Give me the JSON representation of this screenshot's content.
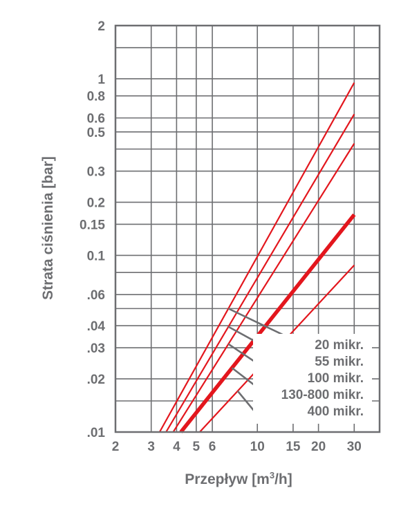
{
  "chart_data": {
    "type": "line",
    "xscale": "log",
    "yscale": "log",
    "xlim": [
      2,
      40
    ],
    "ylim": [
      0.01,
      2
    ],
    "xlabel_parts": [
      "Przepływ [m",
      "3",
      "/h]"
    ],
    "ylabel": "Strata ciśnienia [bar]",
    "x_ticks": [
      {
        "v": 2,
        "label": "2"
      },
      {
        "v": 3,
        "label": "3"
      },
      {
        "v": 4,
        "label": "4"
      },
      {
        "v": 5,
        "label": "5"
      },
      {
        "v": 6,
        "label": "6"
      },
      {
        "v": 10,
        "label": "10"
      },
      {
        "v": 15,
        "label": "15"
      },
      {
        "v": 20,
        "label": "20"
      },
      {
        "v": 30,
        "label": "30"
      }
    ],
    "x_grid": [
      2,
      3,
      4,
      5,
      6,
      10,
      15,
      20,
      30,
      40
    ],
    "y_ticks": [
      {
        "v": 0.01,
        "label": ".01"
      },
      {
        "v": 0.02,
        "label": ".02"
      },
      {
        "v": 0.03,
        "label": ".03"
      },
      {
        "v": 0.04,
        "label": ".04"
      },
      {
        "v": 0.06,
        "label": ".06"
      },
      {
        "v": 0.1,
        "label": "0.1"
      },
      {
        "v": 0.15,
        "label": "0.15"
      },
      {
        "v": 0.2,
        "label": "0.2"
      },
      {
        "v": 0.3,
        "label": "0.3"
      },
      {
        "v": 0.5,
        "label": "0.5"
      },
      {
        "v": 0.6,
        "label": "0.6"
      },
      {
        "v": 0.8,
        "label": "0.8"
      },
      {
        "v": 1,
        "label": "1"
      },
      {
        "v": 2,
        "label": "2"
      }
    ],
    "y_grid": [
      0.01,
      0.015,
      0.02,
      0.03,
      0.04,
      0.05,
      0.06,
      0.08,
      0.1,
      0.15,
      0.2,
      0.3,
      0.4,
      0.5,
      0.6,
      0.8,
      1,
      1.5,
      2
    ],
    "grid": true,
    "colors": {
      "series": "#e3161d",
      "grid": "#6d6e71",
      "text": "#6d6e71"
    },
    "series": [
      {
        "name": "20 mikr.",
        "x": [
          3.3,
          30
        ],
        "y": [
          0.01,
          0.95
        ],
        "width": "normal",
        "pointer_x": 7.2
      },
      {
        "name": "55 mikr.",
        "x": [
          3.55,
          30
        ],
        "y": [
          0.01,
          0.63
        ],
        "width": "normal",
        "pointer_x": 7.2
      },
      {
        "name": "100 mikr.",
        "x": [
          3.85,
          30
        ],
        "y": [
          0.01,
          0.43
        ],
        "width": "normal",
        "pointer_x": 7.2
      },
      {
        "name": "130-800 mikr.",
        "x": [
          4.2,
          30
        ],
        "y": [
          0.01,
          0.17
        ],
        "width": "bold",
        "pointer_x": 7.5
      },
      {
        "name": "400 mikr.",
        "x": [
          5.2,
          30
        ],
        "y": [
          0.01,
          0.088
        ],
        "width": "normal",
        "pointer_x": 8.0
      }
    ]
  }
}
